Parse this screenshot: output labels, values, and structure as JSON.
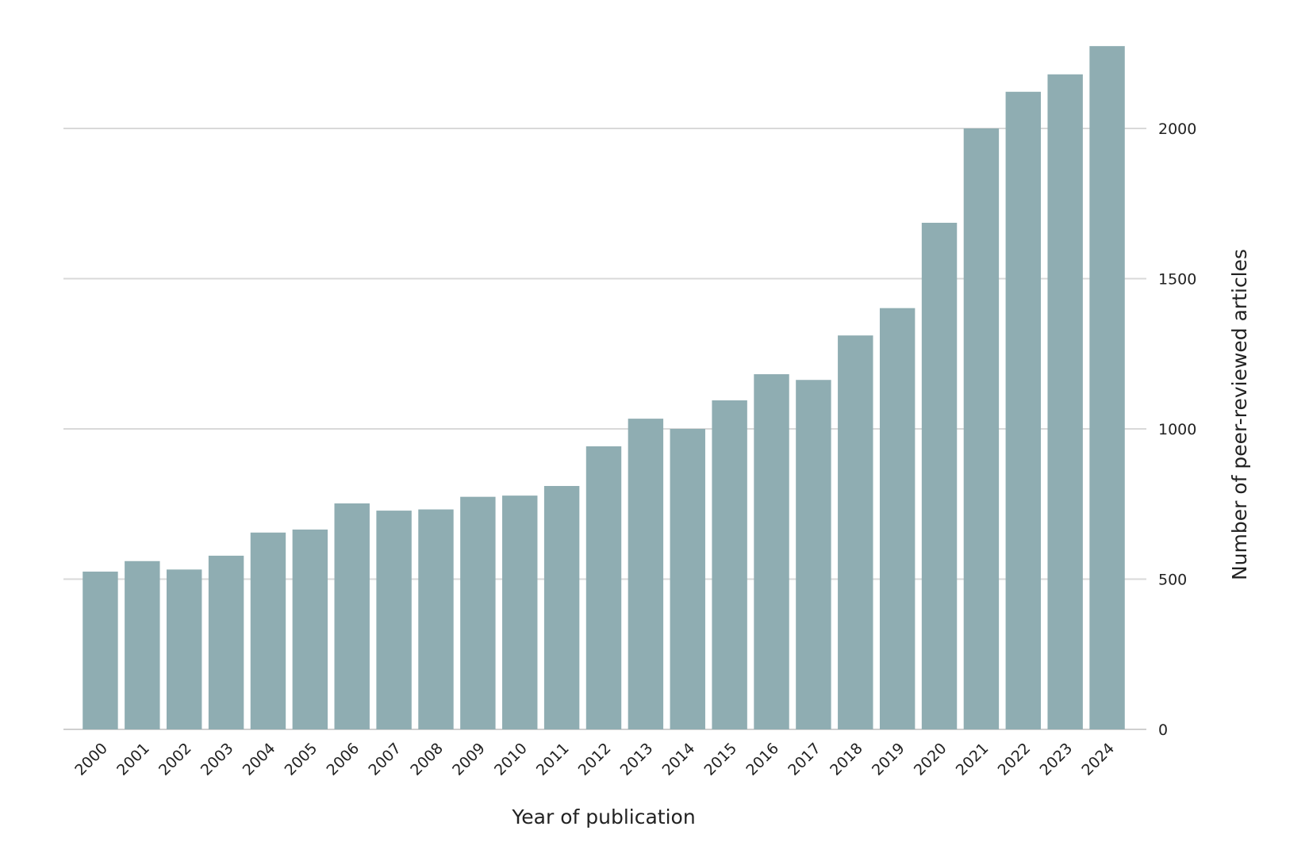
{
  "chart_data": {
    "type": "bar",
    "categories": [
      "2000",
      "2001",
      "2002",
      "2003",
      "2004",
      "2005",
      "2006",
      "2007",
      "2008",
      "2009",
      "2010",
      "2011",
      "2012",
      "2013",
      "2014",
      "2015",
      "2016",
      "2017",
      "2018",
      "2019",
      "2020",
      "2021",
      "2022",
      "2023",
      "2024"
    ],
    "values": [
      525,
      560,
      532,
      578,
      655,
      665,
      752,
      728,
      732,
      774,
      778,
      810,
      942,
      1034,
      1000,
      1095,
      1182,
      1163,
      1311,
      1402,
      1686,
      2000,
      2122,
      2180,
      2274
    ],
    "xlabel": "Year of publication",
    "ylabel": "Number of peer-reviewed articles",
    "ylim": [
      0,
      2300
    ],
    "yticks": [
      0,
      500,
      1000,
      1500,
      2000
    ],
    "grid": true,
    "y_axis_side": "right",
    "bar_color": "#8fadb2",
    "grid_color": "#d9d9d9"
  }
}
